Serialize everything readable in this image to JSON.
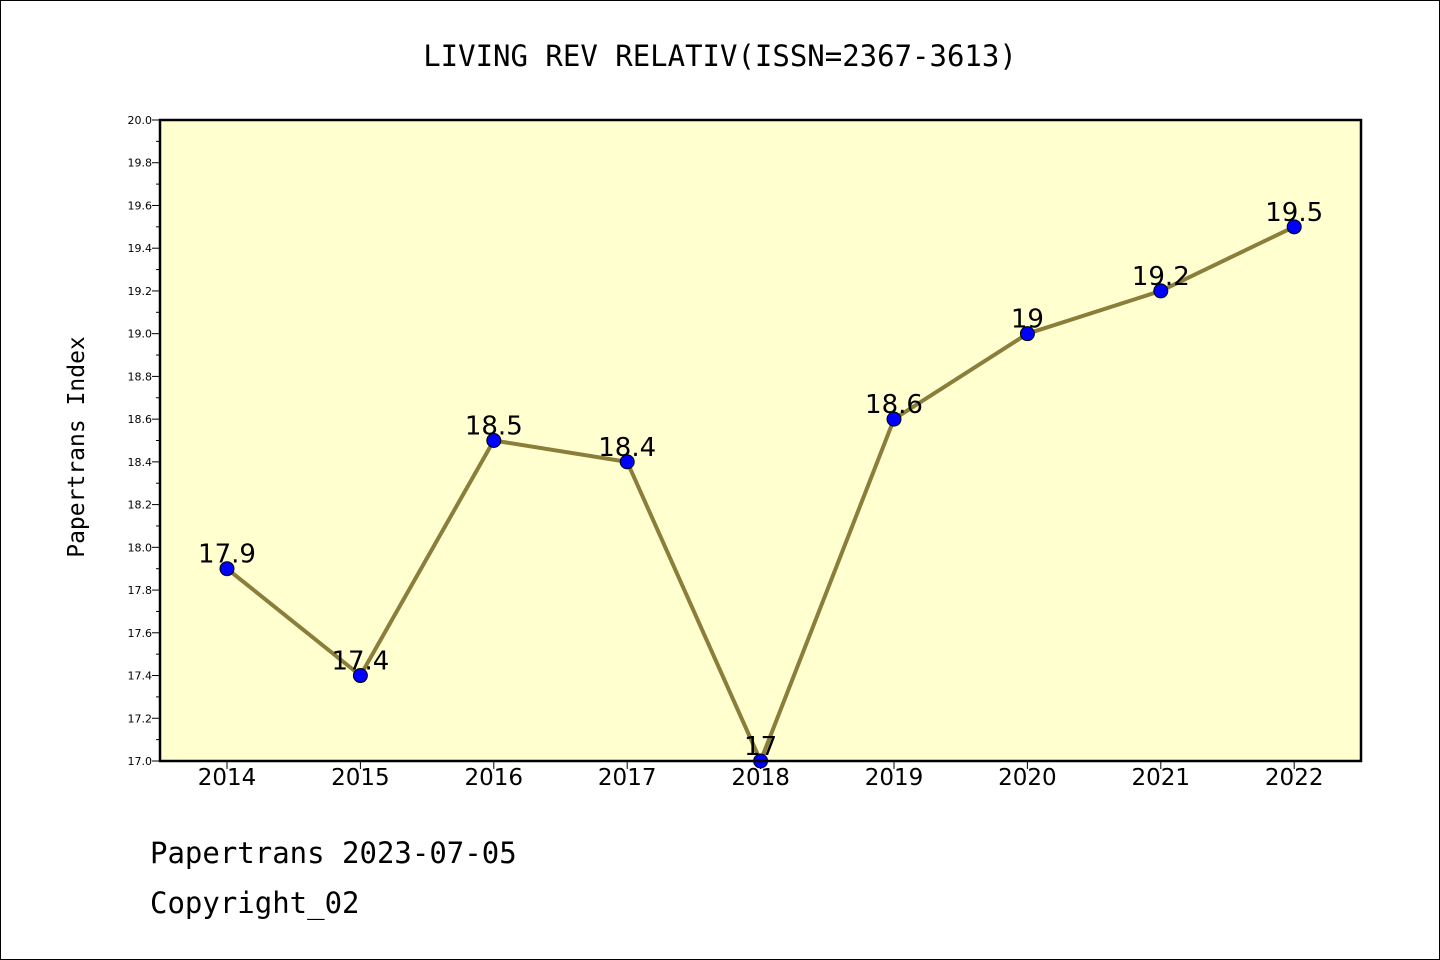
{
  "chart_data": {
    "type": "line",
    "title": "LIVING REV RELATIV(ISSN=2367-3613)",
    "xlabel": "",
    "ylabel": "Papertrans Index",
    "categories": [
      "2014",
      "2015",
      "2016",
      "2017",
      "2018",
      "2019",
      "2020",
      "2021",
      "2022"
    ],
    "series": [
      {
        "values": [
          17.9,
          17.4,
          18.5,
          18.4,
          17.0,
          18.6,
          19.0,
          19.2,
          19.5
        ],
        "data_labels": [
          "17.9",
          "17.4",
          "18.5",
          "18.4",
          "17",
          "18.6",
          "19",
          "19.2",
          "19.5"
        ]
      }
    ],
    "ylim": [
      17.0,
      20.0
    ],
    "yticks": [
      "17.0",
      "17.2",
      "17.4",
      "17.6",
      "17.8",
      "18.0",
      "18.2",
      "18.4",
      "18.6",
      "18.8",
      "19.0",
      "19.2",
      "19.4",
      "19.6",
      "19.8",
      "20.0"
    ],
    "grid": false,
    "legend": "none",
    "colors": {
      "plot_background": "#ffffd0",
      "line": "#8b7d3a",
      "marker": "#0000ff",
      "axis": "#000000"
    }
  },
  "footer": {
    "line1": "Papertrans 2023-07-05",
    "line2": "Copyright_02"
  }
}
